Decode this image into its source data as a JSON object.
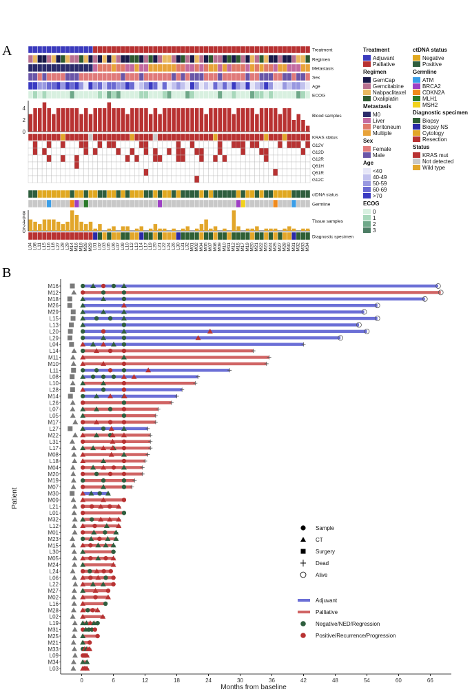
{
  "panel_labels": {
    "a": "A",
    "b": "B"
  },
  "panel_a": {
    "patients": [
      "L04",
      "L08",
      "L11",
      "L15",
      "L16",
      "L18",
      "L27",
      "L28",
      "L29",
      "M14",
      "M16",
      "M18",
      "M26",
      "M29",
      "L01",
      "L02",
      "L03",
      "L05",
      "L06",
      "L07",
      "L09",
      "L10",
      "L12",
      "L13",
      "L14",
      "L17",
      "L19",
      "L20",
      "L21",
      "L22",
      "L24",
      "L26",
      "L30",
      "L31",
      "L32",
      "M01",
      "M02",
      "M04",
      "M05",
      "M07",
      "M08",
      "M09",
      "M10",
      "M11",
      "M12",
      "M15",
      "M17",
      "M19",
      "M20",
      "M21",
      "M22",
      "M23",
      "M24",
      "M25",
      "M27",
      "M28",
      "M30",
      "M31",
      "M32",
      "M33",
      "M34"
    ],
    "track_labels": {
      "treatment": "Treatment",
      "regimen": "Regimen",
      "metastasis": "Metastasis",
      "sex": "Sex",
      "age": "Age",
      "ecog": "ECOG",
      "blood": "Blood samples",
      "kras": "KRAS status",
      "ctdna": "ctDNA status",
      "germline": "Germline",
      "tissue": "Tissue samples",
      "diagnostic": "Diagnostic specimen"
    },
    "mutation_rows": [
      "G12V",
      "G12D",
      "G12R",
      "Q61H",
      "Q61R",
      "G12C"
    ],
    "blood_axis": [
      "0",
      "2",
      "4"
    ],
    "tissue_axis": [
      "0",
      "2",
      "4",
      "6",
      "8"
    ],
    "legend": [
      {
        "title": "Treatment",
        "items": [
          {
            "label": "Adjuvant",
            "color": "#3b3bbd"
          },
          {
            "label": "Palliative",
            "color": "#b83232"
          }
        ]
      },
      {
        "title": "ctDNA status",
        "items": [
          {
            "label": "Negative",
            "color": "#e0a820"
          },
          {
            "label": "Positive",
            "color": "#2f5e3e"
          }
        ]
      },
      {
        "title": "Regimen",
        "items": [
          {
            "label": "GemCap",
            "color": "#1a1a4a"
          },
          {
            "label": "Gemcitabine",
            "color": "#b87090"
          },
          {
            "label": "Nabpaclitaxel",
            "color": "#e9b860"
          },
          {
            "label": "Oxaliplatin",
            "color": "#2e5a30"
          }
        ]
      },
      {
        "title": "Germline",
        "items": [
          {
            "label": "ATM",
            "color": "#3a9ee8"
          },
          {
            "label": "BRCA2",
            "color": "#9d3fc4"
          },
          {
            "label": "CDKN2A",
            "color": "#f08a1c"
          },
          {
            "label": "MLH1",
            "color": "#2a7a2a"
          },
          {
            "label": "MSH2",
            "color": "#f2d21c"
          }
        ]
      },
      {
        "title": "Metastasis",
        "items": [
          {
            "label": "M0",
            "color": "#2b2b6b"
          },
          {
            "label": "Liver",
            "color": "#c36aa0"
          },
          {
            "label": "Peritoneum",
            "color": "#e07a6a"
          },
          {
            "label": "Multiple",
            "color": "#e8a33a"
          }
        ]
      },
      {
        "title": "Diagnostic specimen",
        "items": [
          {
            "label": "Biopsy",
            "color": "#2e5e35"
          },
          {
            "label": "Biopsy NS",
            "color": "#2a2aa8"
          },
          {
            "label": "Cytology",
            "color": "#e2a62a"
          },
          {
            "label": "Resection",
            "color": "#b83232"
          }
        ]
      },
      {
        "title": "Sex",
        "items": [
          {
            "label": "Female",
            "color": "#e07a7a"
          },
          {
            "label": "Male",
            "color": "#6a56a8"
          }
        ]
      },
      {
        "title": "Status",
        "items": [
          {
            "label": "KRAS mut",
            "color": "#b83232"
          },
          {
            "label": "Not detected",
            "color": "#c8c8c8"
          },
          {
            "label": "Wild type",
            "color": "#e2a62a"
          }
        ]
      },
      {
        "title": "Age",
        "items": [
          {
            "label": "<40",
            "color": "#e6e6f7"
          },
          {
            "label": "40-49",
            "color": "#c2c2ee"
          },
          {
            "label": "50-59",
            "color": "#9898e0"
          },
          {
            "label": "60-69",
            "color": "#6a6ad2"
          },
          {
            "label": ">70",
            "color": "#3a3ac2"
          }
        ]
      },
      {
        "title": "ECOG",
        "items": [
          {
            "label": "0",
            "color": "#d8f0e0"
          },
          {
            "label": "1",
            "color": "#a8d8bb"
          },
          {
            "label": "2",
            "color": "#6fa889"
          },
          {
            "label": "3",
            "color": "#4c7d64"
          }
        ]
      }
    ],
    "colors": {
      "blood_bar": "#b83232",
      "tissue_bar": "#e2a62a"
    }
  },
  "chart_data": {
    "type": "swimmer",
    "xlabel": "Months from baseline",
    "ylabel": "Patient",
    "xticks": [
      0,
      6,
      12,
      18,
      24,
      30,
      36,
      42,
      48,
      54,
      60,
      66
    ],
    "xlim": [
      -4,
      70
    ],
    "patients": [
      {
        "id": "M16",
        "trt": "Adjuvant",
        "end": 67.5,
        "status": "Alive"
      },
      {
        "id": "M12",
        "trt": "Palliative",
        "end": 68,
        "status": "Alive"
      },
      {
        "id": "M18",
        "trt": "Adjuvant",
        "end": 65,
        "status": "Alive"
      },
      {
        "id": "M26",
        "trt": "Adjuvant",
        "end": 56,
        "status": "Alive"
      },
      {
        "id": "M29",
        "trt": "Adjuvant",
        "end": 53.5,
        "status": "Alive"
      },
      {
        "id": "L15",
        "trt": "Adjuvant",
        "end": 56,
        "status": "Alive"
      },
      {
        "id": "L13",
        "trt": "Adjuvant",
        "end": 52.5,
        "status": "Alive"
      },
      {
        "id": "L20",
        "trt": "Adjuvant",
        "end": 54,
        "status": "Alive"
      },
      {
        "id": "L29",
        "trt": "Adjuvant",
        "end": 49,
        "status": "Alive"
      },
      {
        "id": "L04",
        "trt": "Adjuvant",
        "end": 42,
        "status": "Dead"
      },
      {
        "id": "L14",
        "trt": "Palliative",
        "end": 32.5,
        "status": "Dead"
      },
      {
        "id": "M11",
        "trt": "Palliative",
        "end": 35.5,
        "status": "Dead"
      },
      {
        "id": "M10",
        "trt": "Palliative",
        "end": 35,
        "status": "Dead"
      },
      {
        "id": "L11",
        "trt": "Adjuvant",
        "end": 28,
        "status": "Dead"
      },
      {
        "id": "L08",
        "trt": "Adjuvant",
        "end": 22,
        "status": "Dead"
      },
      {
        "id": "L10",
        "trt": "Palliative",
        "end": 21.5,
        "status": "Dead"
      },
      {
        "id": "L28",
        "trt": "Adjuvant",
        "end": 19,
        "status": "Dead"
      },
      {
        "id": "M14",
        "trt": "Adjuvant",
        "end": 18,
        "status": "Dead"
      },
      {
        "id": "L26",
        "trt": "Palliative",
        "end": 17,
        "status": "Dead"
      },
      {
        "id": "L07",
        "trt": "Palliative",
        "end": 14.5,
        "status": "Dead"
      },
      {
        "id": "L05",
        "trt": "Palliative",
        "end": 14,
        "status": "Dead"
      },
      {
        "id": "M17",
        "trt": "Palliative",
        "end": 14,
        "status": "Dead"
      },
      {
        "id": "L27",
        "trt": "Adjuvant",
        "end": 12.5,
        "status": "Dead"
      },
      {
        "id": "M22",
        "trt": "Palliative",
        "end": 13,
        "status": "Dead"
      },
      {
        "id": "L31",
        "trt": "Palliative",
        "end": 13,
        "status": "Dead"
      },
      {
        "id": "L17",
        "trt": "Palliative",
        "end": 13,
        "status": "Dead"
      },
      {
        "id": "M08",
        "trt": "Palliative",
        "end": 12.5,
        "status": "Dead"
      },
      {
        "id": "L18",
        "trt": "Palliative",
        "end": 12,
        "status": "Dead"
      },
      {
        "id": "M04",
        "trt": "Palliative",
        "end": 11.5,
        "status": "Dead"
      },
      {
        "id": "M20",
        "trt": "Palliative",
        "end": 11.5,
        "status": "Dead"
      },
      {
        "id": "M19",
        "trt": "Palliative",
        "end": 10,
        "status": "Dead"
      },
      {
        "id": "M07",
        "trt": "Palliative",
        "end": 9.5,
        "status": "Dead"
      },
      {
        "id": "M30",
        "trt": "Adjuvant",
        "end": 5,
        "status": "Dead"
      },
      {
        "id": "M09",
        "trt": "Palliative",
        "end": 8,
        "status": "Dead"
      },
      {
        "id": "L21",
        "trt": "Palliative",
        "end": 7,
        "status": "Dead"
      },
      {
        "id": "L01",
        "trt": "Palliative",
        "end": 8,
        "status": "Dead"
      },
      {
        "id": "M32",
        "trt": "Palliative",
        "end": 7,
        "status": "Dead"
      },
      {
        "id": "L12",
        "trt": "Palliative",
        "end": 7,
        "status": "Dead"
      },
      {
        "id": "M01",
        "trt": "Palliative",
        "end": 6.5,
        "status": "Dead"
      },
      {
        "id": "M23",
        "trt": "Palliative",
        "end": 6.5,
        "status": "Dead"
      },
      {
        "id": "M15",
        "trt": "Palliative",
        "end": 6,
        "status": "Dead"
      },
      {
        "id": "L30",
        "trt": "Palliative",
        "end": 6,
        "status": "Dead"
      },
      {
        "id": "M05",
        "trt": "Palliative",
        "end": 6,
        "status": "Dead"
      },
      {
        "id": "M24",
        "trt": "Palliative",
        "end": 6,
        "status": "Dead"
      },
      {
        "id": "L24",
        "trt": "Palliative",
        "end": 5.5,
        "status": "Dead"
      },
      {
        "id": "L06",
        "trt": "Palliative",
        "end": 6,
        "status": "Dead"
      },
      {
        "id": "L22",
        "trt": "Palliative",
        "end": 6,
        "status": "Dead"
      },
      {
        "id": "M27",
        "trt": "Palliative",
        "end": 5,
        "status": "Dead"
      },
      {
        "id": "M02",
        "trt": "Palliative",
        "end": 5,
        "status": "Dead"
      },
      {
        "id": "L16",
        "trt": "Palliative",
        "end": 4.5,
        "status": "Dead"
      },
      {
        "id": "M28",
        "trt": "Palliative",
        "end": 3,
        "status": "Dead"
      },
      {
        "id": "L02",
        "trt": "Palliative",
        "end": 4,
        "status": "Dead"
      },
      {
        "id": "L19",
        "trt": "Palliative",
        "end": 3,
        "status": "Dead"
      },
      {
        "id": "M31",
        "trt": "Palliative",
        "end": 2.5,
        "status": "Dead"
      },
      {
        "id": "M25",
        "trt": "Palliative",
        "end": 3,
        "status": "Dead"
      },
      {
        "id": "M21",
        "trt": "Palliative",
        "end": 1.5,
        "status": "Dead"
      },
      {
        "id": "M33",
        "trt": "Palliative",
        "end": 1.5,
        "status": "Dead"
      },
      {
        "id": "L09",
        "trt": "Palliative",
        "end": 1,
        "status": "Dead"
      },
      {
        "id": "M34",
        "trt": "Palliative",
        "end": 1,
        "status": "Dead"
      },
      {
        "id": "L03",
        "trt": "Palliative",
        "end": 1,
        "status": "Dead"
      }
    ],
    "legend": [
      {
        "label": "Sample",
        "shape": "circle"
      },
      {
        "label": "CT",
        "shape": "triangle"
      },
      {
        "label": "Surgery",
        "shape": "square"
      },
      {
        "label": "Dead",
        "shape": "plus"
      },
      {
        "label": "Alive",
        "shape": "open-circle"
      },
      {
        "label": "Adjuvant",
        "shape": "line",
        "color": "#6b6fd6"
      },
      {
        "label": "Palliative",
        "shape": "line",
        "color": "#d06464"
      },
      {
        "label": "Negative/NED/Regression",
        "shape": "circle",
        "color": "#2f5e3e"
      },
      {
        "label": "Positive/Recurrence/Progression",
        "shape": "circle",
        "color": "#b83232"
      }
    ],
    "colors": {
      "adjuvant": "#6b6fd6",
      "palliative": "#d06464",
      "negative": "#2f5e3e",
      "positive": "#b83232",
      "grey": "#7a7a7a"
    }
  }
}
